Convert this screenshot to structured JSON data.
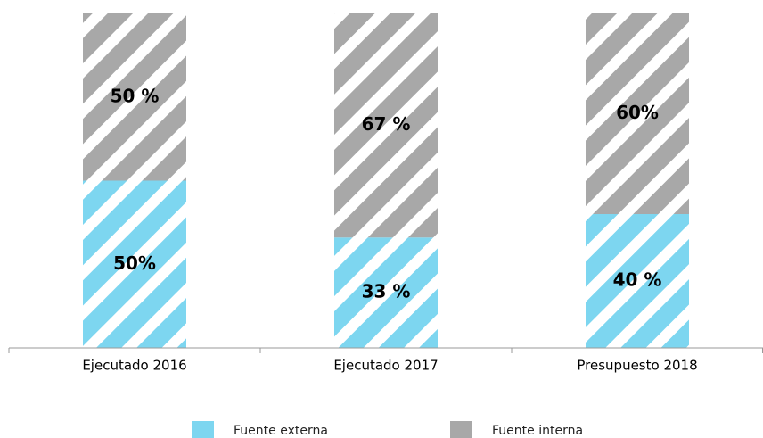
{
  "chart_data": {
    "type": "stacked-bar",
    "categories": [
      "Ejecutado 2016",
      "Ejecutado 2017",
      "Presupuesto 2018"
    ],
    "series": [
      {
        "name": "Fuente externa",
        "color": "#7dd6f0",
        "values": [
          50,
          33,
          40
        ],
        "value_labels": [
          "50%",
          "33 %",
          "40 %"
        ]
      },
      {
        "name": "Fuente interna",
        "color": "#a8a8a8",
        "values": [
          50,
          67,
          60
        ],
        "value_labels": [
          "50 %",
          "67 %",
          "60%"
        ]
      }
    ],
    "ylim": [
      0,
      100
    ],
    "legend": "bottom"
  }
}
